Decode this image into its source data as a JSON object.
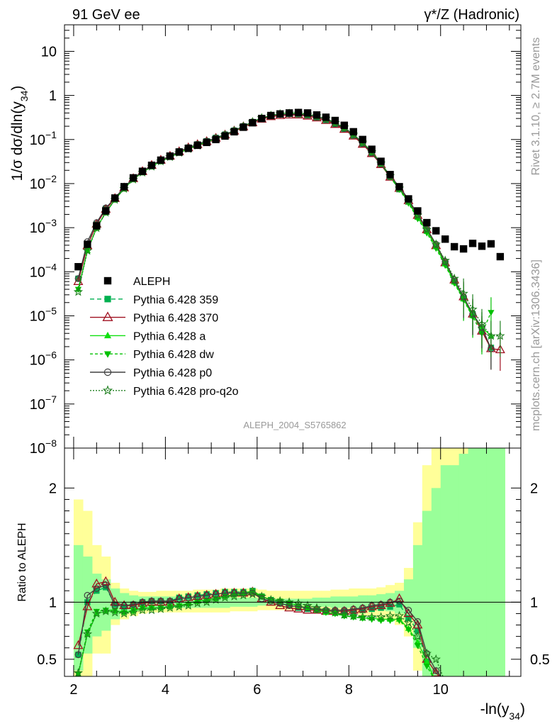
{
  "header": {
    "left_label": "91 GeV ee",
    "right_label": "γ*/Z (Hadronic)"
  },
  "side_text": {
    "rivet": "Rivet 3.1.10, ≥ 2.7M events",
    "site": "mcplots.cern.ch [arXiv:1306.3436]"
  },
  "analysis_label": "ALEPH_2004_S5765862",
  "chart_data": [
    {
      "type": "scatter",
      "ylabel": "1/σ dσ/dln(y34)",
      "ylabel_parts": {
        "pre": "1/σ  dσ/dln(y",
        "sub": "34",
        "post": ")"
      },
      "yscale": "log",
      "xlim": [
        1.8,
        11.75
      ],
      "ylim": [
        1e-08,
        40
      ],
      "y_ticks": [
        {
          "v": 10,
          "base": "10",
          "exp": ""
        },
        {
          "v": 1,
          "base": "1",
          "exp": ""
        },
        {
          "v": 0.1,
          "base": "10",
          "exp": "−1"
        },
        {
          "v": 0.01,
          "base": "10",
          "exp": "−2"
        },
        {
          "v": 0.001,
          "base": "10",
          "exp": "−3"
        },
        {
          "v": 0.0001,
          "base": "10",
          "exp": "−4"
        },
        {
          "v": 1e-05,
          "base": "10",
          "exp": "−5"
        },
        {
          "v": 1e-06,
          "base": "10",
          "exp": "−6"
        },
        {
          "v": 1e-07,
          "base": "10",
          "exp": "−7"
        },
        {
          "v": 1e-08,
          "base": "10",
          "exp": "−8"
        }
      ],
      "legend_position": "left-middle",
      "data_series": {
        "name": "ALEPH",
        "x": [
          2.1,
          2.3,
          2.5,
          2.7,
          2.9,
          3.1,
          3.3,
          3.5,
          3.7,
          3.9,
          4.1,
          4.3,
          4.5,
          4.7,
          4.9,
          5.1,
          5.3,
          5.5,
          5.7,
          5.9,
          6.1,
          6.3,
          6.5,
          6.7,
          6.9,
          7.1,
          7.3,
          7.5,
          7.7,
          7.9,
          8.1,
          8.3,
          8.5,
          8.7,
          8.9,
          9.1,
          9.3,
          9.5,
          9.7,
          9.9,
          10.1,
          10.3,
          10.5,
          10.7,
          10.9,
          11.1,
          11.3
        ],
        "y": [
          0.00013,
          0.00042,
          0.0011,
          0.0024,
          0.0047,
          0.0085,
          0.0135,
          0.019,
          0.026,
          0.034,
          0.042,
          0.052,
          0.063,
          0.074,
          0.086,
          0.1,
          0.12,
          0.15,
          0.19,
          0.24,
          0.3,
          0.35,
          0.38,
          0.4,
          0.41,
          0.4,
          0.36,
          0.32,
          0.27,
          0.21,
          0.15,
          0.1,
          0.06,
          0.032,
          0.016,
          0.0085,
          0.0045,
          0.0024,
          0.0013,
          0.00085,
          0.00055,
          0.00037,
          0.00033,
          0.00044,
          0.00038,
          0.00043,
          0.00022
        ]
      },
      "models": [
        {
          "name": "Pythia 6.428 359",
          "color": "#00b050",
          "marker": "square",
          "dash": "6 4",
          "y": [
            7e-05,
            0.00042,
            0.0012,
            0.0027,
            0.0046,
            0.0082,
            0.0132,
            0.0189,
            0.026,
            0.034,
            0.042,
            0.054,
            0.066,
            0.078,
            0.092,
            0.11,
            0.13,
            0.16,
            0.2,
            0.25,
            0.31,
            0.35,
            0.37,
            0.38,
            0.37,
            0.35,
            0.31,
            0.27,
            0.22,
            0.17,
            0.12,
            0.079,
            0.048,
            0.027,
            0.014,
            0.0074,
            0.0039,
            0.0018,
            0.00088,
            0.00039,
            0.00016,
            6.2e-05,
            2.5e-05,
            1.1e-05,
            4.5e-06,
            1.9e-06,
            null
          ]
        },
        {
          "name": "Pythia 6.428 370",
          "color": "#a01020",
          "marker": "triangle-open",
          "dash": "",
          "y": [
            6e-05,
            0.00039,
            0.0012,
            0.0026,
            0.0046,
            0.008,
            0.013,
            0.0188,
            0.026,
            0.034,
            0.042,
            0.053,
            0.065,
            0.077,
            0.09,
            0.107,
            0.127,
            0.156,
            0.195,
            0.24,
            0.29,
            0.33,
            0.35,
            0.36,
            0.36,
            0.34,
            0.31,
            0.27,
            0.22,
            0.17,
            0.12,
            0.078,
            0.048,
            0.027,
            0.014,
            0.0078,
            0.0041,
            0.0019,
            0.0009,
            0.00039,
            0.00016,
            6.5e-05,
            2.7e-05,
            1.1e-05,
            4.5e-06,
            1.8e-06,
            1.7e-06
          ]
        },
        {
          "name": "Pythia 6.428 a",
          "color": "#10e010",
          "marker": "triangle",
          "dash": "",
          "y": [
            4e-05,
            0.0003,
            0.001,
            0.0022,
            0.0043,
            0.0077,
            0.0125,
            0.018,
            0.0245,
            0.032,
            0.04,
            0.05,
            0.062,
            0.075,
            0.088,
            0.106,
            0.128,
            0.16,
            0.2,
            0.25,
            0.31,
            0.35,
            0.38,
            0.39,
            0.39,
            0.37,
            0.33,
            0.29,
            0.24,
            0.18,
            0.13,
            0.085,
            0.052,
            0.029,
            0.015,
            0.0076,
            0.0038,
            0.0017,
            0.00082,
            0.00037,
            0.00015,
            5.8e-05,
            2.4e-05,
            1e-05,
            5.5e-06,
            3.5e-06,
            null
          ]
        },
        {
          "name": "Pythia 6.428 dw",
          "color": "#00c000",
          "marker": "triangle-down",
          "dash": "4 3",
          "y": [
            4e-05,
            0.00031,
            0.00098,
            0.0022,
            0.0043,
            0.0077,
            0.0126,
            0.018,
            0.0245,
            0.032,
            0.04,
            0.05,
            0.062,
            0.074,
            0.087,
            0.105,
            0.127,
            0.158,
            0.198,
            0.25,
            0.31,
            0.35,
            0.38,
            0.39,
            0.39,
            0.37,
            0.33,
            0.29,
            0.24,
            0.18,
            0.13,
            0.084,
            0.051,
            0.028,
            0.014,
            0.0074,
            0.0036,
            0.0016,
            0.00076,
            0.00034,
            0.00014,
            5.5e-05,
            2.3e-05,
            9.5e-06,
            4e-06,
            1.2e-05,
            null
          ]
        },
        {
          "name": "Pythia 6.428 p0",
          "color": "#404040",
          "marker": "circle-open",
          "dash": "",
          "y": [
            7e-05,
            0.00048,
            0.0013,
            0.0028,
            0.0047,
            0.0082,
            0.013,
            0.0188,
            0.026,
            0.034,
            0.042,
            0.054,
            0.066,
            0.078,
            0.092,
            0.109,
            0.13,
            0.16,
            0.2,
            0.25,
            0.3,
            0.35,
            0.37,
            0.38,
            0.38,
            0.36,
            0.33,
            0.29,
            0.23,
            0.18,
            0.13,
            0.082,
            0.05,
            0.028,
            0.015,
            0.0085,
            0.0044,
            0.002,
            0.00095,
            0.00042,
            0.00017,
            6.5e-05,
            2.7e-05,
            1.1e-05,
            5.5e-06,
            1.8e-06,
            null
          ]
        },
        {
          "name": "Pythia 6.428 pro-q2o",
          "color": "#208020",
          "marker": "star",
          "dash": "2 2",
          "y": [
            3.5e-05,
            0.0003,
            0.00098,
            0.0022,
            0.0043,
            0.0076,
            0.0124,
            0.0178,
            0.0243,
            0.032,
            0.04,
            0.05,
            0.061,
            0.073,
            0.086,
            0.104,
            0.126,
            0.157,
            0.197,
            0.25,
            0.31,
            0.35,
            0.38,
            0.39,
            0.39,
            0.37,
            0.34,
            0.3,
            0.24,
            0.19,
            0.13,
            0.086,
            0.052,
            0.029,
            0.015,
            0.0078,
            0.004,
            0.0019,
            0.0009,
            0.00042,
            0.00018,
            7e-05,
            3.2e-05,
            1.4e-05,
            6.5e-06,
            3.5e-06,
            3.5e-06
          ]
        }
      ]
    },
    {
      "type": "scatter",
      "ylabel": "Ratio to ALEPH",
      "xlabel": "-ln(y34)",
      "xlabel_parts": {
        "pre": "-ln(y",
        "sub": "34",
        "post": ")"
      },
      "xlim": [
        1.8,
        11.75
      ],
      "ylim": [
        0.35,
        2.35
      ],
      "x_ticks": [
        2,
        4,
        6,
        8,
        10
      ],
      "y_ticks": [
        0.5,
        1,
        2
      ],
      "reference_line": 1,
      "bands": {
        "x": [
          2.1,
          2.3,
          2.5,
          2.7,
          2.9,
          3.1,
          3.3,
          3.5,
          3.7,
          3.9,
          4.1,
          4.3,
          4.5,
          4.7,
          4.9,
          5.1,
          5.3,
          5.5,
          5.7,
          5.9,
          6.1,
          6.3,
          6.5,
          6.7,
          6.9,
          7.1,
          7.3,
          7.5,
          7.7,
          7.9,
          8.1,
          8.3,
          8.5,
          8.7,
          8.9,
          9.1,
          9.3,
          9.5,
          9.7,
          9.9,
          10.1,
          10.3,
          10.5,
          10.7,
          10.9,
          11.1,
          11.3
        ],
        "stat_lo": [
          0.4,
          0.55,
          0.7,
          0.75,
          0.85,
          0.9,
          0.92,
          0.93,
          0.94,
          0.94,
          0.95,
          0.95,
          0.95,
          0.95,
          0.95,
          0.95,
          0.95,
          0.96,
          0.96,
          0.96,
          0.97,
          0.97,
          0.97,
          0.97,
          0.97,
          0.97,
          0.96,
          0.96,
          0.95,
          0.95,
          0.95,
          0.94,
          0.94,
          0.93,
          0.92,
          0.9,
          0.85,
          0.6,
          0.3,
          0.3,
          0.3,
          0.3,
          0.3,
          0.3,
          0.3,
          0.3,
          0.3
        ],
        "stat_hi": [
          1.5,
          1.4,
          1.25,
          1.2,
          1.12,
          1.08,
          1.06,
          1.05,
          1.05,
          1.05,
          1.05,
          1.05,
          1.05,
          1.05,
          1.05,
          1.05,
          1.05,
          1.04,
          1.04,
          1.04,
          1.03,
          1.03,
          1.03,
          1.03,
          1.03,
          1.03,
          1.04,
          1.04,
          1.05,
          1.05,
          1.05,
          1.06,
          1.06,
          1.07,
          1.08,
          1.1,
          1.2,
          1.5,
          1.8,
          2.0,
          2.2,
          2.2,
          2.3,
          2.4,
          2.4,
          2.4,
          2.4
        ],
        "tot_lo": [
          0.3,
          0.3,
          0.55,
          0.55,
          0.8,
          0.85,
          0.88,
          0.9,
          0.91,
          0.91,
          0.91,
          0.91,
          0.91,
          0.91,
          0.91,
          0.91,
          0.91,
          0.92,
          0.92,
          0.92,
          0.93,
          0.93,
          0.93,
          0.93,
          0.93,
          0.93,
          0.92,
          0.92,
          0.91,
          0.91,
          0.9,
          0.88,
          0.88,
          0.85,
          0.85,
          0.8,
          0.7,
          0.4,
          0.3,
          0.3,
          0.3,
          0.3,
          0.3,
          0.3,
          0.3,
          0.3,
          0.3
        ],
        "tot_hi": [
          1.9,
          1.8,
          1.5,
          1.4,
          1.17,
          1.12,
          1.1,
          1.09,
          1.09,
          1.1,
          1.1,
          1.1,
          1.1,
          1.11,
          1.11,
          1.11,
          1.12,
          1.12,
          1.12,
          1.12,
          1.11,
          1.1,
          1.1,
          1.1,
          1.1,
          1.1,
          1.1,
          1.1,
          1.11,
          1.11,
          1.12,
          1.12,
          1.12,
          1.13,
          1.15,
          1.17,
          1.3,
          1.7,
          2.2,
          2.4,
          2.4,
          2.4,
          2.4,
          2.4,
          2.4,
          2.4,
          2.4
        ]
      },
      "series": [
        {
          "name": "Pythia 6.428 359",
          "values": [
            0.54,
            1.0,
            1.1,
            1.13,
            0.98,
            0.96,
            0.98,
            1.0,
            1.01,
            1.01,
            1.01,
            1.04,
            1.05,
            1.06,
            1.07,
            1.08,
            1.09,
            1.09,
            1.09,
            1.1,
            1.05,
            1.02,
            0.99,
            0.97,
            0.95,
            0.94,
            0.93,
            0.92,
            0.92,
            0.92,
            0.92,
            0.93,
            0.94,
            0.95,
            0.96,
            0.98,
            0.86,
            0.75,
            0.48,
            0.3,
            0.3,
            0.3,
            0.3,
            0.3,
            0.3,
            0.3,
            0.3
          ]
        },
        {
          "name": "Pythia 6.428 370",
          "values": [
            0.62,
            0.96,
            1.16,
            1.18,
            1.0,
            0.97,
            0.97,
            0.99,
            1.0,
            1.0,
            1.0,
            1.03,
            1.04,
            1.05,
            1.06,
            1.07,
            1.08,
            1.08,
            1.08,
            1.09,
            1.03,
            1.0,
            0.97,
            0.95,
            0.94,
            0.93,
            0.93,
            0.92,
            0.92,
            0.92,
            0.93,
            0.94,
            0.96,
            0.97,
            0.99,
            1.03,
            0.9,
            0.8,
            0.5,
            0.38,
            0.3,
            0.3,
            0.3,
            0.3,
            0.3,
            0.3,
            0.3
          ]
        },
        {
          "name": "Pythia 6.428 a",
          "values": [
            0.37,
            0.72,
            0.9,
            0.92,
            0.92,
            0.91,
            0.92,
            0.95,
            0.95,
            0.95,
            0.96,
            0.97,
            0.99,
            1.01,
            1.02,
            1.03,
            1.05,
            1.07,
            1.08,
            1.1,
            1.05,
            1.02,
            1.01,
            0.99,
            0.97,
            0.95,
            0.93,
            0.91,
            0.9,
            0.88,
            0.87,
            0.86,
            0.86,
            0.85,
            0.85,
            0.85,
            0.77,
            0.65,
            0.48,
            0.3,
            0.3,
            0.3,
            0.3,
            0.3,
            0.3,
            0.3,
            0.3
          ]
        },
        {
          "name": "Pythia 6.428 dw",
          "values": [
            0.37,
            0.74,
            0.92,
            0.93,
            0.93,
            0.91,
            0.93,
            0.95,
            0.95,
            0.95,
            0.96,
            0.97,
            0.98,
            1.0,
            1.01,
            1.03,
            1.05,
            1.06,
            1.07,
            1.09,
            1.05,
            1.02,
            1.01,
            0.99,
            0.97,
            0.95,
            0.93,
            0.91,
            0.9,
            0.88,
            0.87,
            0.86,
            0.85,
            0.84,
            0.84,
            0.84,
            0.76,
            0.62,
            0.44,
            0.3,
            0.3,
            0.3,
            0.3,
            0.3,
            0.3,
            0.3,
            0.3
          ]
        },
        {
          "name": "Pythia 6.428 p0",
          "values": [
            0.54,
            1.06,
            1.12,
            1.15,
            0.97,
            0.97,
            0.98,
            1.0,
            1.01,
            1.01,
            1.01,
            1.03,
            1.04,
            1.05,
            1.06,
            1.07,
            1.08,
            1.08,
            1.08,
            1.08,
            1.03,
            1.01,
            0.99,
            0.97,
            0.96,
            0.95,
            0.94,
            0.93,
            0.93,
            0.93,
            0.94,
            0.95,
            0.97,
            0.98,
            1.0,
            1.01,
            0.93,
            0.83,
            0.55,
            0.4,
            0.3,
            0.3,
            0.3,
            0.3,
            0.3,
            0.3,
            0.3
          ]
        },
        {
          "name": "Pythia 6.428 pro-q2o",
          "values": [
            0.38,
            0.72,
            0.9,
            0.92,
            0.91,
            0.9,
            0.91,
            0.93,
            0.93,
            0.94,
            0.95,
            0.96,
            0.97,
            0.99,
            1.0,
            1.02,
            1.04,
            1.05,
            1.06,
            1.07,
            1.05,
            1.02,
            1.01,
            1.0,
            0.99,
            0.97,
            0.95,
            0.93,
            0.91,
            0.89,
            0.88,
            0.87,
            0.87,
            0.87,
            0.88,
            0.88,
            0.82,
            0.7,
            0.55,
            0.5,
            0.3,
            0.3,
            0.3,
            0.3,
            0.3,
            0.3,
            0.3
          ]
        }
      ]
    }
  ]
}
